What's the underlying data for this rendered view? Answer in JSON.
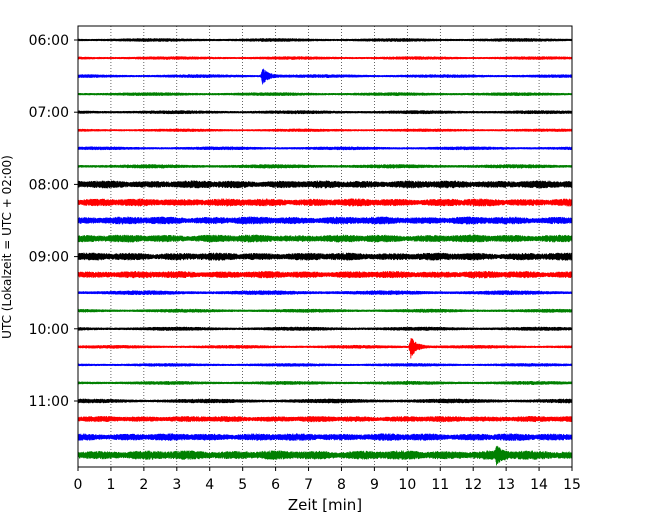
{
  "chart_data": {
    "type": "line",
    "title": "",
    "xlabel": "Zeit  [min]",
    "ylabel": "UTC (Lokalzeit = UTC + 02:00)",
    "xlim": [
      0,
      15
    ],
    "x_ticks": [
      0,
      1,
      2,
      3,
      4,
      5,
      6,
      7,
      8,
      9,
      10,
      11,
      12,
      13,
      14,
      15
    ],
    "x_tick_labels": [
      "0",
      "1",
      "2",
      "3",
      "4",
      "5",
      "6",
      "7",
      "8",
      "9",
      "10",
      "11",
      "12",
      "13",
      "14",
      "15"
    ],
    "y_tick_labels": [
      "06:00",
      "07:00",
      "08:00",
      "09:00",
      "10:00",
      "11:00"
    ],
    "grid": {
      "vertical": true,
      "style": "dotted"
    },
    "trace_interval_min": 15,
    "trace_colors": [
      "#000000",
      "#ff0000",
      "#0000ff",
      "#008000"
    ],
    "traces": [
      {
        "start": "06:00",
        "color": "#000000",
        "amplitude": 1.5,
        "bursts": []
      },
      {
        "start": "06:15",
        "color": "#ff0000",
        "amplitude": 1.4,
        "bursts": []
      },
      {
        "start": "06:30",
        "color": "#0000ff",
        "amplitude": 1.5,
        "bursts": [
          {
            "x": 5.6,
            "amplitude": 8
          }
        ]
      },
      {
        "start": "06:45",
        "color": "#008000",
        "amplitude": 1.5,
        "bursts": []
      },
      {
        "start": "07:00",
        "color": "#000000",
        "amplitude": 1.6,
        "bursts": []
      },
      {
        "start": "07:15",
        "color": "#ff0000",
        "amplitude": 1.3,
        "bursts": []
      },
      {
        "start": "07:30",
        "color": "#0000ff",
        "amplitude": 1.5,
        "bursts": []
      },
      {
        "start": "07:45",
        "color": "#008000",
        "amplitude": 1.8,
        "bursts": []
      },
      {
        "start": "08:00",
        "color": "#000000",
        "amplitude": 3.5,
        "bursts": []
      },
      {
        "start": "08:15",
        "color": "#ff0000",
        "amplitude": 3.5,
        "bursts": []
      },
      {
        "start": "08:30",
        "color": "#0000ff",
        "amplitude": 3.5,
        "bursts": []
      },
      {
        "start": "08:45",
        "color": "#008000",
        "amplitude": 3.5,
        "bursts": []
      },
      {
        "start": "09:00",
        "color": "#000000",
        "amplitude": 3.5,
        "bursts": []
      },
      {
        "start": "09:15",
        "color": "#ff0000",
        "amplitude": 3.2,
        "bursts": []
      },
      {
        "start": "09:30",
        "color": "#0000ff",
        "amplitude": 2.0,
        "bursts": []
      },
      {
        "start": "09:45",
        "color": "#008000",
        "amplitude": 1.6,
        "bursts": []
      },
      {
        "start": "10:00",
        "color": "#000000",
        "amplitude": 1.7,
        "bursts": []
      },
      {
        "start": "10:15",
        "color": "#ff0000",
        "amplitude": 1.5,
        "bursts": [
          {
            "x": 10.1,
            "amplitude": 11
          }
        ]
      },
      {
        "start": "10:30",
        "color": "#0000ff",
        "amplitude": 1.4,
        "bursts": []
      },
      {
        "start": "10:45",
        "color": "#008000",
        "amplitude": 1.6,
        "bursts": []
      },
      {
        "start": "11:00",
        "color": "#000000",
        "amplitude": 2.0,
        "bursts": []
      },
      {
        "start": "11:15",
        "color": "#ff0000",
        "amplitude": 2.6,
        "bursts": []
      },
      {
        "start": "11:30",
        "color": "#0000ff",
        "amplitude": 3.3,
        "bursts": []
      },
      {
        "start": "11:45",
        "color": "#008000",
        "amplitude": 4.2,
        "bursts": [
          {
            "x": 12.7,
            "amplitude": 6
          }
        ]
      }
    ]
  }
}
